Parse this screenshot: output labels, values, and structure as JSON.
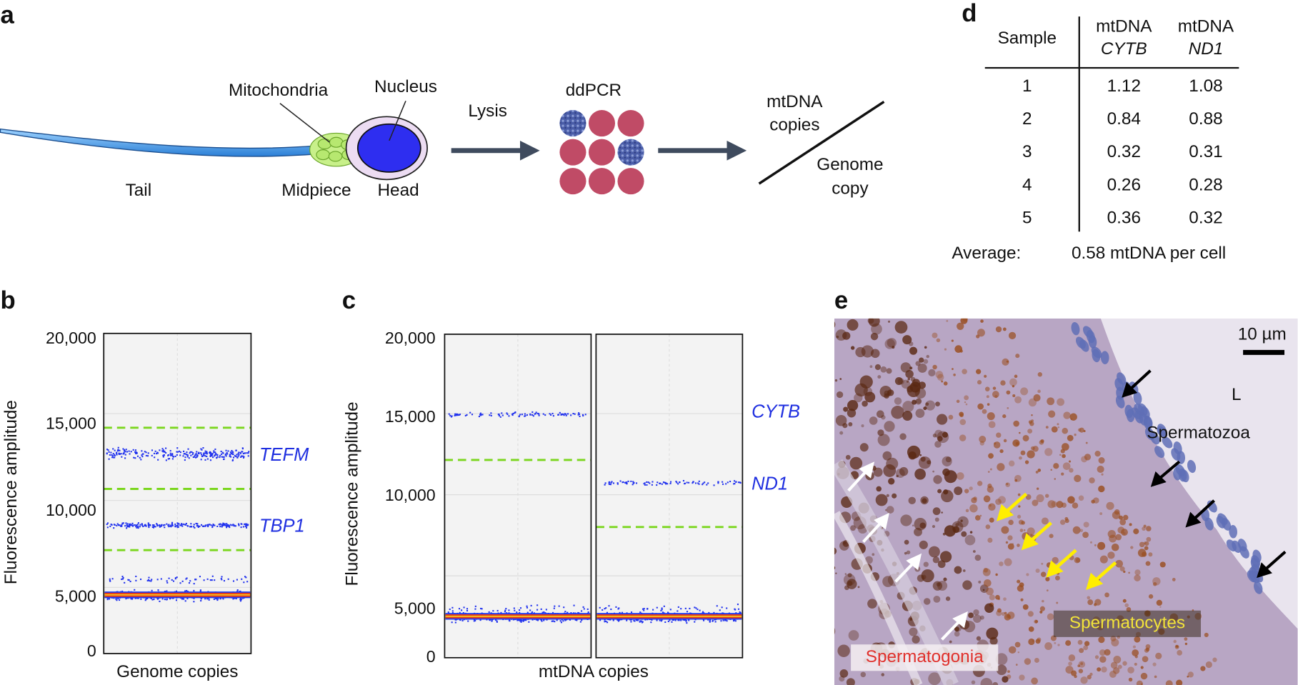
{
  "panels": {
    "a": {
      "label": "a",
      "mitochondria": "Mitochondria",
      "nucleus": "Nucleus",
      "tail": "Tail",
      "midpiece": "Midpiece",
      "head": "Head",
      "lysis": "Lysis",
      "ddpcr": "ddPCR",
      "numerator": [
        "mtDNA",
        "copies"
      ],
      "denominator": [
        "Genome",
        "copy"
      ]
    },
    "b": {
      "label": "b",
      "y_label": "Fluorescence amplitude",
      "yticks": [
        "20,000",
        "15,000",
        "10,000",
        "5,000",
        "0"
      ],
      "x_label": "Genome copies",
      "clusters": [
        "TEFM",
        "TBP1"
      ]
    },
    "c": {
      "label": "c",
      "y_label": "Fluorescence amplitude",
      "yticks": [
        "20,000",
        "15,000",
        "10,000",
        "5,000",
        "0"
      ],
      "x_label": "mtDNA copies",
      "clusters": [
        "CYTB",
        "ND1"
      ]
    },
    "d": {
      "label": "d",
      "header": [
        {
          "line1": "Sample"
        },
        {
          "line1": "mtDNA",
          "line2": "CYTB"
        },
        {
          "line1": "mtDNA",
          "line2": "ND1"
        }
      ],
      "rows": [
        [
          "1",
          "1.12",
          "1.08"
        ],
        [
          "2",
          "0.84",
          "0.88"
        ],
        [
          "3",
          "0.32",
          "0.31"
        ],
        [
          "4",
          "0.26",
          "0.28"
        ],
        [
          "5",
          "0.36",
          "0.32"
        ]
      ],
      "average_label": "Average:",
      "average_text": "0.58 mtDNA per cell"
    },
    "e": {
      "label": "e",
      "scale_bar": "10 µm",
      "lumen": "L",
      "spermatozoa": "Spermatozoa",
      "spermatocytes": "Spermatocytes",
      "spermatogonia": "Spermatogonia"
    }
  }
}
